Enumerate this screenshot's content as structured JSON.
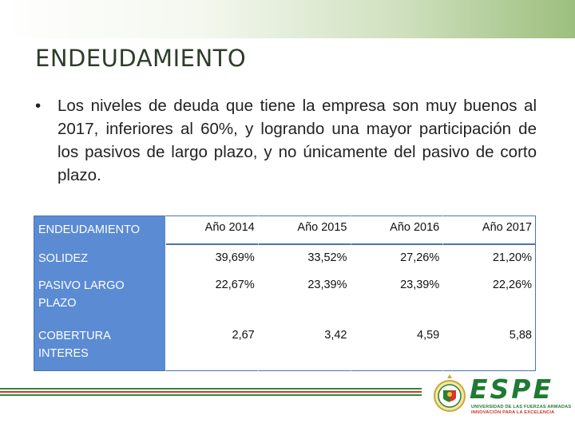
{
  "title": "ENDEUDAMIENTO",
  "bullet": {
    "symbol": "•",
    "text": "Los niveles de deuda que tiene la empresa son muy buenos al 2017,  inferiores al 60%, y logrando una mayor participación de los pasivos de largo plazo, y no únicamente del pasivo de corto plazo."
  },
  "table": {
    "header": [
      "ENDEUDAMIENTO",
      "Año 2014",
      "Año 2015",
      "Año 2016",
      "Año 2017"
    ],
    "rows": [
      {
        "label": "SOLIDEZ",
        "values": [
          "39,69%",
          "33,52%",
          "27,26%",
          "21,20%"
        ]
      },
      {
        "label": "PASIVO LARGO PLAZO",
        "values": [
          "22,67%",
          "23,39%",
          "23,39%",
          "22,26%"
        ]
      },
      {
        "label": "COBERTURA INTERES",
        "values": [
          "2,67",
          "3,42",
          "4,59",
          "5,88"
        ]
      }
    ]
  },
  "logo": {
    "name": "ESPE",
    "line1": "UNIVERSIDAD DE LAS FUERZAS ARMADAS",
    "line2": "INNOVACIÓN PARA LA EXCELENCIA"
  },
  "colors": {
    "header_blue": "#5b8bd3",
    "brand_green": "#1f7a34",
    "brand_red": "#d6362c"
  }
}
